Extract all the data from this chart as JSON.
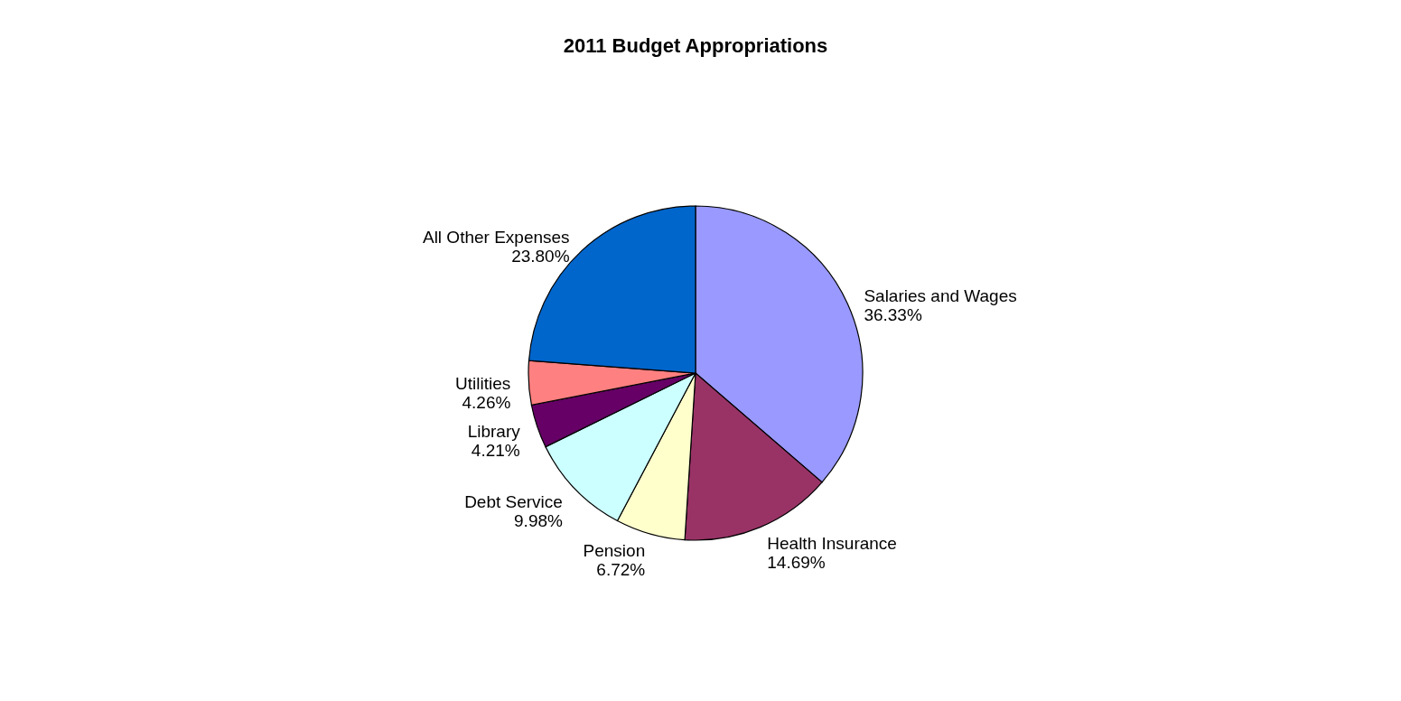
{
  "chart_data": {
    "type": "pie",
    "title": "2011 Budget Appropriations",
    "categories": [
      "Salaries and Wages",
      "Health Insurance",
      "Pension",
      "Debt Service",
      "Library",
      "Utilities",
      "All Other Expenses"
    ],
    "values": [
      36.33,
      14.69,
      6.72,
      9.98,
      4.21,
      4.26,
      23.8
    ],
    "value_labels": [
      "36.33%",
      "14.69%",
      "6.72%",
      "9.98%",
      "4.21%",
      "4.26%",
      "23.80%"
    ],
    "colors": [
      "#9999ff",
      "#993366",
      "#ffffcc",
      "#ccffff",
      "#660066",
      "#ff8080",
      "#0066cc"
    ]
  }
}
